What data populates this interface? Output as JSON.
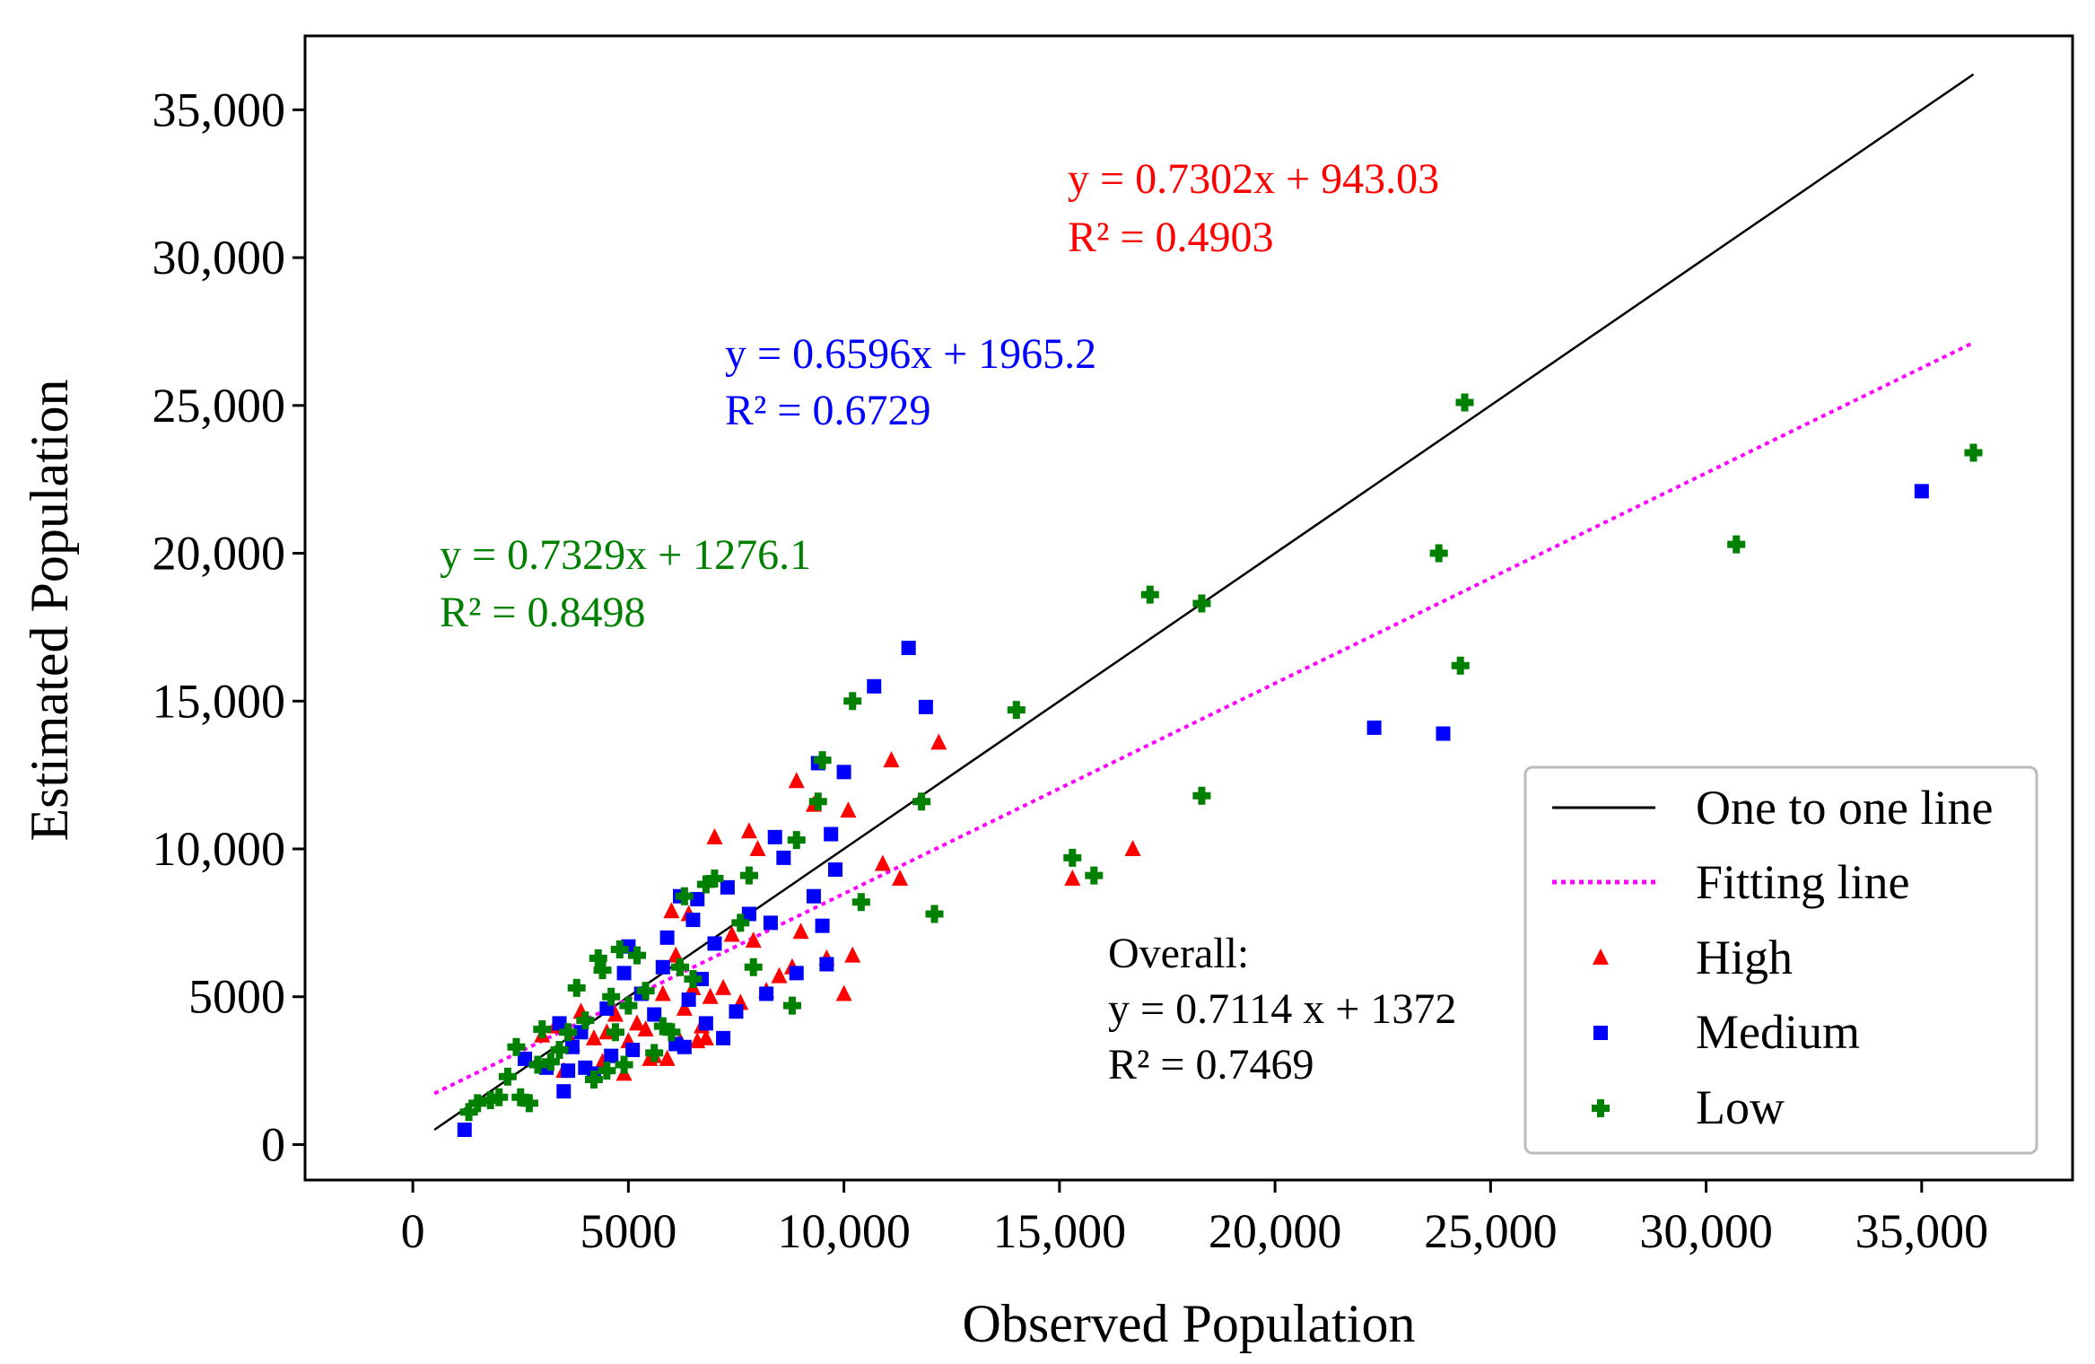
{
  "chart_data": {
    "type": "scatter",
    "xlabel": "Observed Population",
    "ylabel": "Estimated Population",
    "xlim": [
      -2500,
      38500
    ],
    "ylim": [
      -1200,
      37500
    ],
    "x_ticks": [
      0,
      5000,
      10000,
      15000,
      20000,
      25000,
      30000,
      35000
    ],
    "x_tick_labels": [
      "0",
      "5000",
      "10,000",
      "15,000",
      "20,000",
      "25,000",
      "30,000",
      "35,000"
    ],
    "y_ticks": [
      0,
      5000,
      10000,
      15000,
      20000,
      25000,
      30000,
      35000
    ],
    "y_tick_labels": [
      "0",
      "5000",
      "10,000",
      "15,000",
      "20,000",
      "25,000",
      "30,000",
      "35,000"
    ],
    "lines": [
      {
        "name": "One to one line",
        "color": "#000000",
        "style": "solid",
        "slope": 1,
        "intercept": 0,
        "x_range": [
          500,
          36200
        ]
      },
      {
        "name": "Fitting line",
        "color": "#ff00ff",
        "style": "dotted",
        "slope": 0.7114,
        "intercept": 1372,
        "x_range": [
          500,
          36200
        ]
      }
    ],
    "series": [
      {
        "name": "High",
        "color": "#ff0000",
        "marker": "triangle",
        "points": [
          [
            3000,
            3700
          ],
          [
            3300,
            4000
          ],
          [
            3700,
            3400
          ],
          [
            3900,
            4500
          ],
          [
            4200,
            3600
          ],
          [
            4500,
            3800
          ],
          [
            4700,
            4400
          ],
          [
            4900,
            2400
          ],
          [
            5000,
            3500
          ],
          [
            5200,
            4100
          ],
          [
            5500,
            2900
          ],
          [
            5600,
            3000
          ],
          [
            5800,
            5100
          ],
          [
            5900,
            2900
          ],
          [
            6000,
            7900
          ],
          [
            6100,
            6400
          ],
          [
            6200,
            3500
          ],
          [
            6300,
            4600
          ],
          [
            6400,
            7800
          ],
          [
            6500,
            5300
          ],
          [
            6600,
            3500
          ],
          [
            6700,
            4000
          ],
          [
            6900,
            5000
          ],
          [
            7000,
            10400
          ],
          [
            7200,
            5300
          ],
          [
            7400,
            7100
          ],
          [
            7600,
            4800
          ],
          [
            7800,
            10600
          ],
          [
            8000,
            10000
          ],
          [
            8200,
            5200
          ],
          [
            8500,
            5700
          ],
          [
            8800,
            6000
          ],
          [
            8900,
            12300
          ],
          [
            9000,
            7200
          ],
          [
            9300,
            11500
          ],
          [
            9600,
            6300
          ],
          [
            10000,
            5100
          ],
          [
            10100,
            11300
          ],
          [
            10200,
            6400
          ],
          [
            10900,
            9500
          ],
          [
            11100,
            13000
          ],
          [
            11300,
            9000
          ],
          [
            12200,
            13600
          ],
          [
            15300,
            9000
          ],
          [
            16700,
            10000
          ],
          [
            5400,
            3900
          ],
          [
            6800,
            3600
          ],
          [
            7900,
            6900
          ],
          [
            4400,
            2800
          ],
          [
            3500,
            2500
          ]
        ]
      },
      {
        "name": "Medium",
        "color": "#0000ff",
        "marker": "square",
        "points": [
          [
            1200,
            500
          ],
          [
            2600,
            2900
          ],
          [
            3100,
            2600
          ],
          [
            3400,
            4100
          ],
          [
            3500,
            1800
          ],
          [
            3600,
            2500
          ],
          [
            3700,
            3300
          ],
          [
            4000,
            2600
          ],
          [
            4200,
            2400
          ],
          [
            4500,
            4600
          ],
          [
            4900,
            5800
          ],
          [
            5000,
            6700
          ],
          [
            5100,
            3200
          ],
          [
            5300,
            5100
          ],
          [
            5600,
            4400
          ],
          [
            5800,
            6000
          ],
          [
            5900,
            7000
          ],
          [
            6100,
            3400
          ],
          [
            6200,
            8400
          ],
          [
            6300,
            3300
          ],
          [
            6500,
            7600
          ],
          [
            6600,
            8300
          ],
          [
            6700,
            5600
          ],
          [
            6800,
            4100
          ],
          [
            7000,
            6800
          ],
          [
            7200,
            3600
          ],
          [
            7300,
            8700
          ],
          [
            7500,
            4500
          ],
          [
            7800,
            7800
          ],
          [
            8200,
            5100
          ],
          [
            8400,
            10400
          ],
          [
            8600,
            9700
          ],
          [
            8900,
            5800
          ],
          [
            9300,
            8400
          ],
          [
            9400,
            12900
          ],
          [
            9500,
            7400
          ],
          [
            9600,
            6100
          ],
          [
            9700,
            10500
          ],
          [
            9800,
            9300
          ],
          [
            10000,
            12600
          ],
          [
            10700,
            15500
          ],
          [
            11500,
            16800
          ],
          [
            11900,
            14800
          ],
          [
            22300,
            14100
          ],
          [
            23900,
            13900
          ],
          [
            35000,
            22100
          ],
          [
            4600,
            3000
          ],
          [
            3900,
            3800
          ],
          [
            6400,
            4900
          ],
          [
            8300,
            7500
          ]
        ]
      },
      {
        "name": "Low",
        "color": "#008000",
        "marker": "plus",
        "points": [
          [
            1300,
            1100
          ],
          [
            1500,
            1400
          ],
          [
            1800,
            1500
          ],
          [
            2000,
            1600
          ],
          [
            2200,
            2300
          ],
          [
            2400,
            3300
          ],
          [
            2500,
            1600
          ],
          [
            2700,
            1400
          ],
          [
            2900,
            2700
          ],
          [
            3000,
            3900
          ],
          [
            3200,
            2800
          ],
          [
            3400,
            3200
          ],
          [
            3600,
            3800
          ],
          [
            3800,
            5300
          ],
          [
            4000,
            4200
          ],
          [
            4200,
            2200
          ],
          [
            4300,
            6300
          ],
          [
            4400,
            5900
          ],
          [
            4500,
            2500
          ],
          [
            4600,
            5000
          ],
          [
            4700,
            3800
          ],
          [
            4800,
            6600
          ],
          [
            4900,
            2700
          ],
          [
            5000,
            4700
          ],
          [
            5200,
            6400
          ],
          [
            5400,
            5200
          ],
          [
            5600,
            3100
          ],
          [
            5800,
            4000
          ],
          [
            6000,
            3800
          ],
          [
            6200,
            6000
          ],
          [
            6300,
            8400
          ],
          [
            6500,
            5600
          ],
          [
            6800,
            8800
          ],
          [
            7000,
            9000
          ],
          [
            7600,
            7500
          ],
          [
            7800,
            9100
          ],
          [
            7900,
            6000
          ],
          [
            8800,
            4700
          ],
          [
            8900,
            10300
          ],
          [
            9400,
            11600
          ],
          [
            9500,
            13000
          ],
          [
            10200,
            15000
          ],
          [
            10400,
            8200
          ],
          [
            11800,
            11600
          ],
          [
            12100,
            7800
          ],
          [
            14000,
            14700
          ],
          [
            15300,
            9700
          ],
          [
            15800,
            9100
          ],
          [
            17100,
            18600
          ],
          [
            18300,
            18300
          ],
          [
            18300,
            11800
          ],
          [
            23800,
            20000
          ],
          [
            24300,
            16200
          ],
          [
            24400,
            25100
          ],
          [
            30700,
            20300
          ],
          [
            36200,
            23400
          ]
        ]
      }
    ],
    "equations": [
      {
        "color": "#ff0000",
        "line1": "y = 0.7302x + 943.03",
        "line2": "R² = 0.4903"
      },
      {
        "color": "#0000ff",
        "line1": "y = 0.6596x + 1965.2",
        "line2": "R² = 0.6729"
      },
      {
        "color": "#008000",
        "line1": "y = 0.7329x + 1276.1",
        "line2": "R² = 0.8498"
      }
    ],
    "overall": {
      "color": "#000000",
      "line1": "Overall:",
      "line2": "y = 0.7114 x + 1372",
      "line3": "R² = 0.7469"
    },
    "legend": {
      "position": "lower-right",
      "entries": [
        "One to one line",
        "Fitting line",
        "High",
        "Medium",
        "Low"
      ]
    }
  }
}
